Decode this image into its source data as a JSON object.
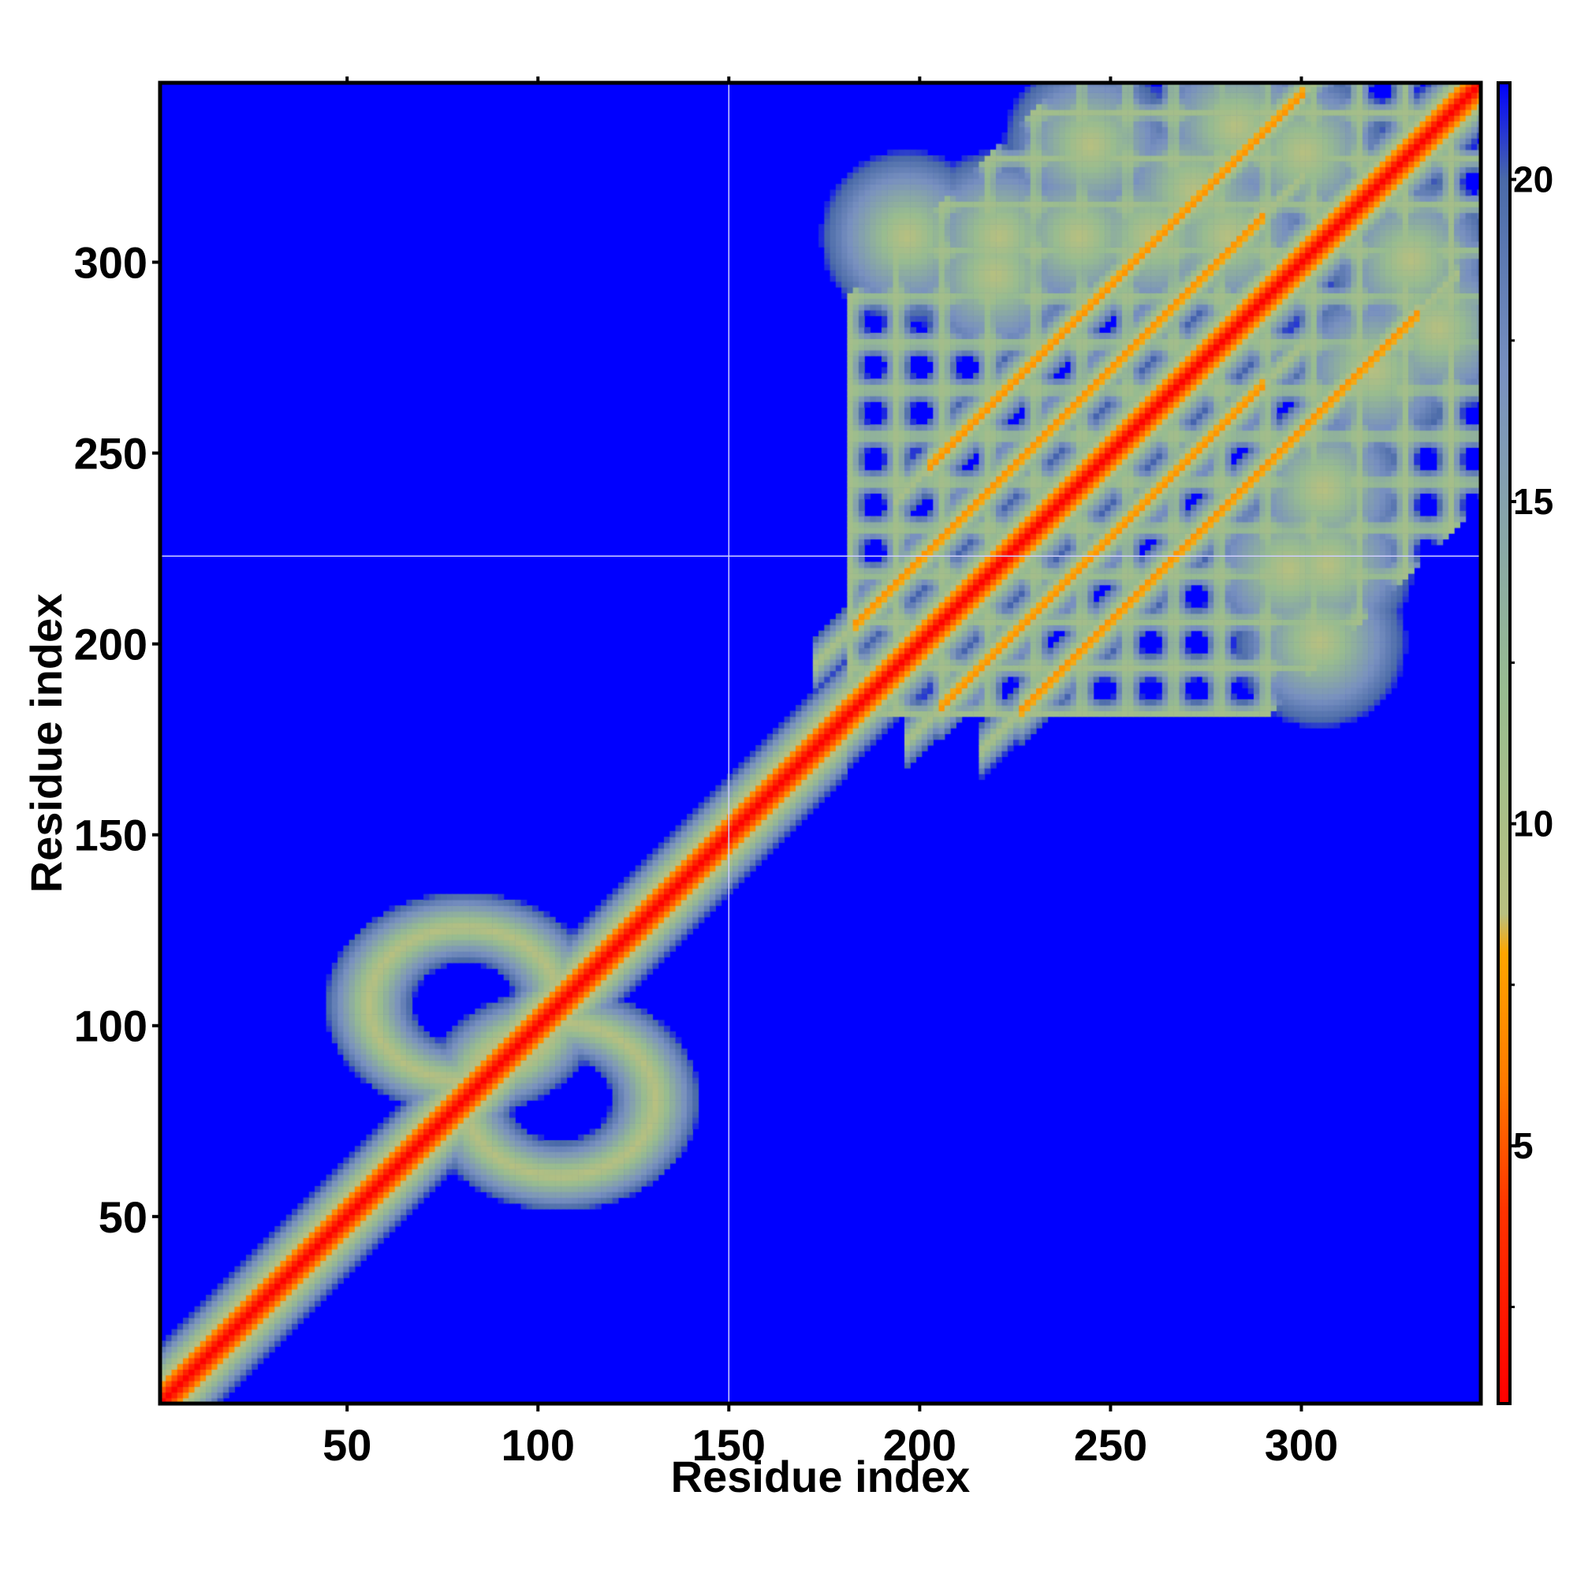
{
  "chart_data": {
    "type": "heatmap",
    "title": "",
    "xlabel": "Residue index",
    "ylabel": "Residue index",
    "xlim": [
      1,
      347
    ],
    "ylim": [
      1,
      347
    ],
    "x_ticks": [
      50,
      100,
      150,
      200,
      250,
      300
    ],
    "y_ticks": [
      50,
      100,
      150,
      200,
      250,
      300
    ],
    "colorbar": {
      "ticks": [
        5,
        10,
        15,
        20
      ],
      "range": [
        1,
        21.5
      ]
    },
    "color_scale": [
      {
        "value": 1,
        "color": "#ff0000"
      },
      {
        "value": 4,
        "color": "#ff3300"
      },
      {
        "value": 6,
        "color": "#ff7a00"
      },
      {
        "value": 8,
        "color": "#ffa500"
      },
      {
        "value": 8.6,
        "color": "#b8c080"
      },
      {
        "value": 12,
        "color": "#98bc90"
      },
      {
        "value": 17,
        "color": "#7890c0"
      },
      {
        "value": 20,
        "color": "#4a6aa8"
      },
      {
        "value": 21.5,
        "color": "#0000ff"
      }
    ],
    "background_color": "#0000ff",
    "grid_lines": {
      "x": [
        150
      ],
      "y": [
        223
      ]
    },
    "features": {
      "diagonal": {
        "from": 1,
        "to": 347
      },
      "ring_contacts": [
        {
          "center": [
            80,
            105
          ],
          "radii": [
            25,
            20
          ]
        },
        {
          "center": [
            105,
            80
          ],
          "radii": [
            25,
            20
          ]
        }
      ],
      "parallel_bands": [
        {
          "offset": 22,
          "x_range": [
            182,
            290
          ]
        },
        {
          "offset": -22,
          "x_range": [
            205,
            290
          ]
        },
        {
          "offset": 44,
          "x_range": [
            202,
            300
          ]
        },
        {
          "offset": -44,
          "x_range": [
            225,
            330
          ]
        }
      ],
      "spots": [
        [
          196,
          306
        ],
        [
          220,
          306
        ],
        [
          241,
          306
        ],
        [
          260,
          306
        ],
        [
          280,
          306
        ],
        [
          219,
          296
        ],
        [
          305,
          240
        ],
        [
          306,
          220
        ],
        [
          304,
          200
        ],
        [
          328,
          300
        ],
        [
          335,
          282
        ],
        [
          282,
          335
        ],
        [
          300,
          328
        ],
        [
          271,
          318
        ],
        [
          318,
          271
        ],
        [
          244,
          330
        ],
        [
          296,
          219
        ]
      ]
    }
  }
}
